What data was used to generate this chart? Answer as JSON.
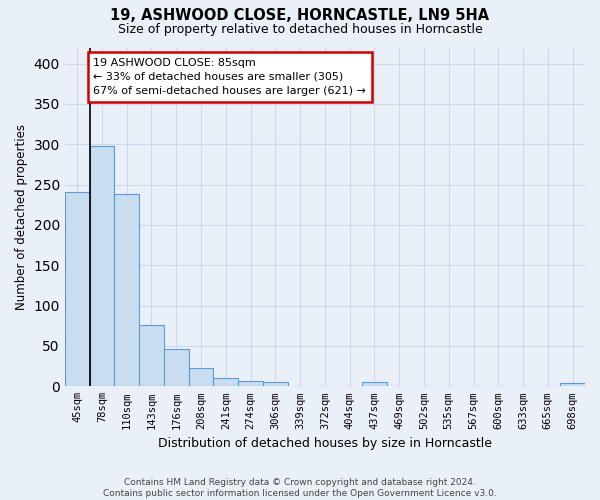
{
  "title": "19, ASHWOOD CLOSE, HORNCASTLE, LN9 5HA",
  "subtitle": "Size of property relative to detached houses in Horncastle",
  "xlabel": "Distribution of detached houses by size in Horncastle",
  "ylabel": "Number of detached properties",
  "bin_labels": [
    "45sqm",
    "78sqm",
    "110sqm",
    "143sqm",
    "176sqm",
    "208sqm",
    "241sqm",
    "274sqm",
    "306sqm",
    "339sqm",
    "372sqm",
    "404sqm",
    "437sqm",
    "469sqm",
    "502sqm",
    "535sqm",
    "567sqm",
    "600sqm",
    "633sqm",
    "665sqm",
    "698sqm"
  ],
  "bar_values": [
    241,
    298,
    238,
    76,
    46,
    23,
    10,
    7,
    5,
    0,
    0,
    0,
    5,
    0,
    0,
    0,
    0,
    0,
    0,
    0,
    4
  ],
  "bar_color": "#c9ddf0",
  "bar_edge_color": "#5b9bd5",
  "vline_x": 0.5,
  "vline_color": "#000000",
  "annotation_text": "19 ASHWOOD CLOSE: 85sqm\n← 33% of detached houses are smaller (305)\n67% of semi-detached houses are larger (621) →",
  "annotation_box_color": "#ffffff",
  "annotation_box_edge": "#cc0000",
  "ylim": [
    0,
    420
  ],
  "yticks": [
    0,
    50,
    100,
    150,
    200,
    250,
    300,
    350,
    400
  ],
  "grid_color": "#d0d8e8",
  "bg_color": "#eaf0f8",
  "footer": "Contains HM Land Registry data © Crown copyright and database right 2024.\nContains public sector information licensed under the Open Government Licence v3.0."
}
